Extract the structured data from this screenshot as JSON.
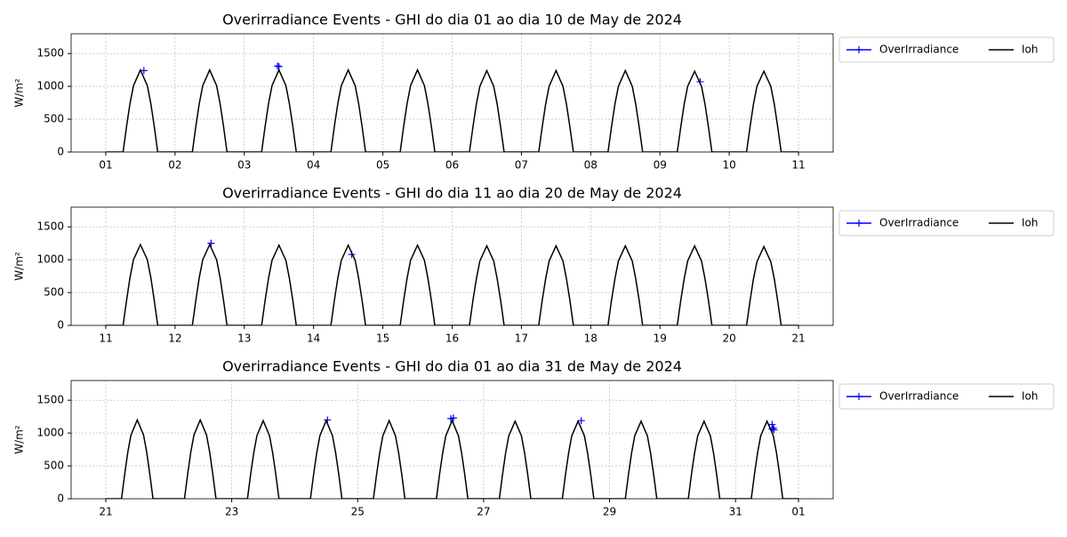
{
  "chart_data": [
    {
      "type": "line",
      "title": "Overirradiance Events - GHI do dia 01 ao dia 10 de May de 2024",
      "ylabel": "W/m²",
      "xlim": [
        0.5,
        11.5
      ],
      "ylim": [
        0,
        1800
      ],
      "grid": true,
      "legend": "outside",
      "xticks": [
        {
          "value": 1,
          "label": "01"
        },
        {
          "value": 2,
          "label": "02"
        },
        {
          "value": 3,
          "label": "03"
        },
        {
          "value": 4,
          "label": "04"
        },
        {
          "value": 5,
          "label": "05"
        },
        {
          "value": 6,
          "label": "06"
        },
        {
          "value": 7,
          "label": "07"
        },
        {
          "value": 8,
          "label": "08"
        },
        {
          "value": 9,
          "label": "09"
        },
        {
          "value": 10,
          "label": "10"
        },
        11
      ],
      "yticks": [
        0,
        500,
        1000,
        1500
      ],
      "series": [
        {
          "name": "OverIrradiance",
          "color": "#0000ff",
          "mode": "markers",
          "x": [
            1.55,
            3.48,
            3.5,
            9.58
          ],
          "values": [
            1240,
            1310,
            1300,
            1070
          ]
        },
        {
          "name": "Ioh",
          "color": "#000000",
          "mode": "lines",
          "x": [
            1,
            1.25,
            1.3,
            1.35,
            1.4,
            1.5,
            1.6,
            1.65,
            1.7,
            1.75,
            2.25,
            2.3,
            2.35,
            2.4,
            2.5,
            2.6,
            2.65,
            2.7,
            2.75,
            3.25,
            3.3,
            3.35,
            3.4,
            3.5,
            3.6,
            3.65,
            3.7,
            3.75,
            4.25,
            4.3,
            4.35,
            4.4,
            4.5,
            4.6,
            4.65,
            4.7,
            4.75,
            5.25,
            5.3,
            5.35,
            5.4,
            5.5,
            5.6,
            5.65,
            5.7,
            5.75,
            6.25,
            6.3,
            6.35,
            6.4,
            6.5,
            6.6,
            6.65,
            6.7,
            6.75,
            7.25,
            7.3,
            7.35,
            7.4,
            7.5,
            7.6,
            7.65,
            7.7,
            7.75,
            8.25,
            8.3,
            8.35,
            8.4,
            8.5,
            8.6,
            8.65,
            8.7,
            8.75,
            9.25,
            9.3,
            9.35,
            9.4,
            9.5,
            9.6,
            9.65,
            9.7,
            9.75,
            10.25,
            10.3,
            10.35,
            10.4,
            10.5,
            10.6,
            10.65,
            10.7,
            10.75,
            11
          ],
          "values": [
            0,
            0,
            390,
            740,
            1010,
            1250,
            1010,
            740,
            390,
            0,
            0,
            390,
            740,
            1010,
            1250,
            1010,
            740,
            390,
            0,
            0,
            390,
            740,
            1010,
            1250,
            1010,
            740,
            390,
            0,
            0,
            390,
            740,
            1010,
            1250,
            1010,
            740,
            390,
            0,
            0,
            390,
            740,
            1010,
            1250,
            1010,
            740,
            390,
            0,
            0,
            380,
            730,
            1000,
            1240,
            1000,
            730,
            380,
            0,
            0,
            380,
            730,
            1000,
            1240,
            1000,
            730,
            380,
            0,
            0,
            380,
            730,
            1000,
            1240,
            1000,
            730,
            380,
            0,
            0,
            380,
            730,
            1000,
            1230,
            1000,
            730,
            380,
            0,
            0,
            380,
            730,
            1000,
            1230,
            1000,
            730,
            380,
            0,
            0
          ]
        }
      ]
    },
    {
      "type": "line",
      "title": "Overirradiance Events - GHI do dia 11 ao dia 20 de May de 2024",
      "ylabel": "W/m²",
      "xlim": [
        10.5,
        21.5
      ],
      "ylim": [
        0,
        1800
      ],
      "grid": true,
      "legend": "outside",
      "xticks": [
        11,
        12,
        13,
        14,
        15,
        16,
        17,
        18,
        19,
        20,
        21
      ],
      "yticks": [
        0,
        500,
        1000,
        1500
      ],
      "series": [
        {
          "name": "OverIrradiance",
          "color": "#0000ff",
          "mode": "markers",
          "x": [
            12.52,
            14.55
          ],
          "values": [
            1250,
            1080
          ]
        },
        {
          "name": "Ioh",
          "color": "#000000",
          "mode": "lines",
          "x": [
            11,
            11.25,
            11.3,
            11.35,
            11.4,
            11.5,
            11.6,
            11.65,
            11.7,
            11.75,
            12.25,
            12.3,
            12.35,
            12.4,
            12.5,
            12.6,
            12.65,
            12.7,
            12.75,
            13.25,
            13.3,
            13.35,
            13.4,
            13.5,
            13.6,
            13.65,
            13.7,
            13.75,
            14.25,
            14.3,
            14.35,
            14.4,
            14.5,
            14.6,
            14.65,
            14.7,
            14.75,
            15.25,
            15.3,
            15.35,
            15.4,
            15.5,
            15.6,
            15.65,
            15.7,
            15.75,
            16.25,
            16.3,
            16.35,
            16.4,
            16.5,
            16.6,
            16.65,
            16.7,
            16.75,
            17.25,
            17.3,
            17.35,
            17.4,
            17.5,
            17.6,
            17.65,
            17.7,
            17.75,
            18.25,
            18.3,
            18.35,
            18.4,
            18.5,
            18.6,
            18.65,
            18.7,
            18.75,
            19.25,
            19.3,
            19.35,
            19.4,
            19.5,
            19.6,
            19.65,
            19.7,
            19.75,
            20.25,
            20.3,
            20.35,
            20.4,
            20.5,
            20.6,
            20.65,
            20.7,
            20.75,
            21
          ],
          "values": [
            0,
            0,
            380,
            730,
            1000,
            1230,
            1000,
            730,
            380,
            0,
            0,
            380,
            730,
            1000,
            1230,
            1000,
            730,
            380,
            0,
            0,
            380,
            720,
            990,
            1220,
            990,
            720,
            380,
            0,
            0,
            380,
            720,
            990,
            1220,
            990,
            720,
            380,
            0,
            0,
            380,
            720,
            990,
            1220,
            990,
            720,
            380,
            0,
            0,
            380,
            710,
            980,
            1210,
            980,
            710,
            380,
            0,
            0,
            380,
            710,
            980,
            1210,
            980,
            710,
            380,
            0,
            0,
            380,
            710,
            980,
            1210,
            980,
            710,
            380,
            0,
            0,
            380,
            710,
            980,
            1210,
            980,
            710,
            380,
            0,
            0,
            370,
            710,
            970,
            1200,
            970,
            710,
            370,
            0,
            0
          ]
        }
      ]
    },
    {
      "type": "line",
      "title": "Overirradiance Events - GHI do dia 01 ao dia 31 de May de 2024",
      "ylabel": "W/m²",
      "xlim": [
        20.45,
        32.55
      ],
      "ylim": [
        0,
        1800
      ],
      "grid": true,
      "legend": "outside",
      "xticks": [
        21,
        23,
        25,
        27,
        29,
        31,
        {
          "value": 32,
          "label": "01"
        }
      ],
      "yticks": [
        0,
        500,
        1000,
        1500
      ],
      "series": [
        {
          "name": "OverIrradiance",
          "color": "#0000ff",
          "mode": "markers",
          "x": [
            24.52,
            26.48,
            26.52,
            28.55,
            31.58,
            31.6,
            31.58,
            31.61
          ],
          "values": [
            1200,
            1220,
            1230,
            1190,
            1130,
            1080,
            1060,
            1050
          ]
        },
        {
          "name": "Ioh",
          "color": "#000000",
          "mode": "lines",
          "x": [
            21,
            21.25,
            21.3,
            21.35,
            21.4,
            21.5,
            21.6,
            21.65,
            21.7,
            21.75,
            22.25,
            22.3,
            22.35,
            22.4,
            22.5,
            22.6,
            22.65,
            22.7,
            22.75,
            23.25,
            23.3,
            23.35,
            23.4,
            23.5,
            23.6,
            23.65,
            23.7,
            23.75,
            24.25,
            24.3,
            24.35,
            24.4,
            24.5,
            24.6,
            24.65,
            24.7,
            24.75,
            25.25,
            25.3,
            25.35,
            25.4,
            25.5,
            25.6,
            25.65,
            25.7,
            25.75,
            26.25,
            26.3,
            26.35,
            26.4,
            26.5,
            26.6,
            26.65,
            26.7,
            26.75,
            27.25,
            27.3,
            27.35,
            27.4,
            27.5,
            27.6,
            27.65,
            27.7,
            27.75,
            28.25,
            28.3,
            28.35,
            28.4,
            28.5,
            28.6,
            28.65,
            28.7,
            28.75,
            29.25,
            29.3,
            29.35,
            29.4,
            29.5,
            29.6,
            29.65,
            29.7,
            29.75,
            30.25,
            30.3,
            30.35,
            30.4,
            30.5,
            30.6,
            30.65,
            30.7,
            30.75,
            31.25,
            31.3,
            31.35,
            31.4,
            31.5,
            31.6,
            31.65,
            31.7,
            31.75,
            32
          ],
          "values": [
            0,
            0,
            370,
            710,
            970,
            1200,
            970,
            710,
            370,
            0,
            0,
            370,
            710,
            970,
            1200,
            970,
            710,
            370,
            0,
            0,
            370,
            700,
            960,
            1190,
            960,
            700,
            370,
            0,
            0,
            370,
            700,
            960,
            1190,
            960,
            700,
            370,
            0,
            0,
            370,
            700,
            960,
            1190,
            960,
            700,
            370,
            0,
            0,
            370,
            700,
            960,
            1190,
            960,
            700,
            370,
            0,
            0,
            370,
            700,
            960,
            1180,
            960,
            700,
            370,
            0,
            0,
            370,
            700,
            960,
            1180,
            960,
            700,
            370,
            0,
            0,
            370,
            700,
            960,
            1180,
            960,
            700,
            370,
            0,
            0,
            370,
            700,
            960,
            1180,
            960,
            700,
            370,
            0,
            0,
            370,
            700,
            960,
            1180,
            960,
            700,
            370,
            0,
            0
          ]
        }
      ]
    }
  ]
}
